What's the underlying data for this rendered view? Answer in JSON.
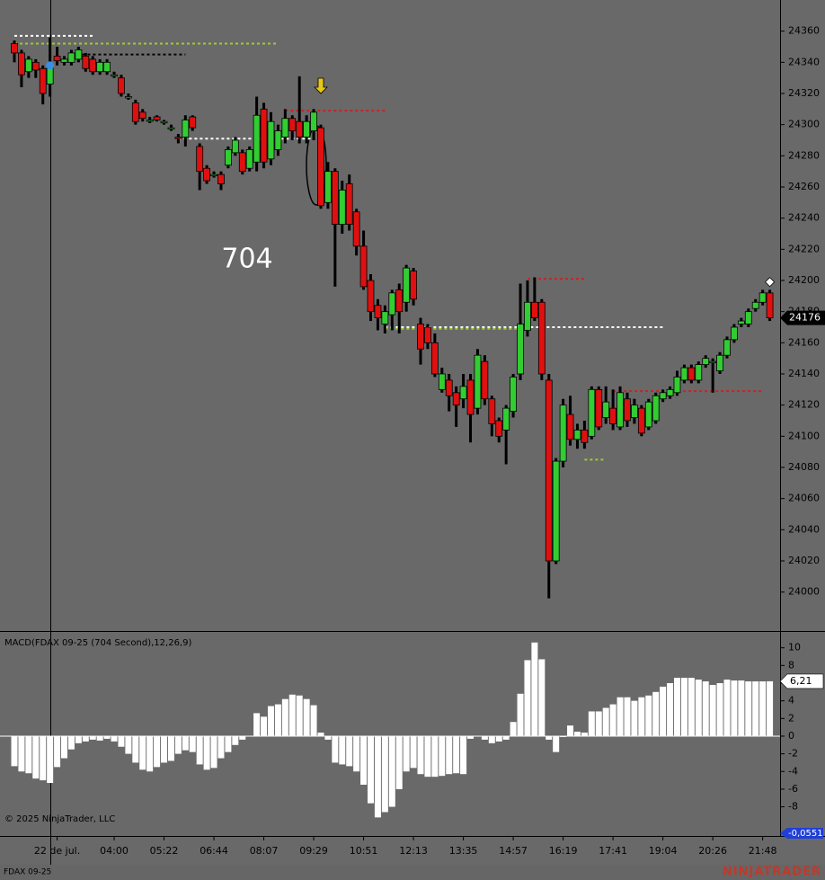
{
  "chart_data": [
    {
      "type": "candlestick",
      "annotation": "704",
      "categories": [
        null,
        null,
        null,
        null,
        null,
        null,
        "22 de jul.",
        null,
        null,
        null,
        null,
        null,
        null,
        null,
        "04:00",
        null,
        null,
        null,
        null,
        null,
        null,
        "05:22",
        null,
        null,
        null,
        null,
        null,
        null,
        "06:44",
        null,
        null,
        null,
        null,
        null,
        null,
        "08:07",
        null,
        null,
        null,
        null,
        null,
        null,
        "09:29",
        null,
        null,
        null,
        null,
        null,
        null,
        "10:51",
        null,
        null,
        null,
        null,
        null,
        null,
        "12:13",
        null,
        null,
        null,
        null,
        null,
        null,
        "13:35",
        null,
        null,
        null,
        null,
        null,
        null,
        "14:57",
        null,
        null,
        null,
        null,
        null,
        null,
        "16:19",
        null,
        null,
        null,
        null,
        null,
        null,
        "17:41",
        null,
        null,
        null,
        null,
        null,
        null,
        "19:04",
        null,
        null,
        null,
        null,
        null,
        null,
        "20:26",
        null,
        null,
        null,
        null,
        null,
        null,
        "21:48",
        null
      ],
      "ohlc": [
        [
          24352,
          24354,
          24340,
          24346
        ],
        [
          24346,
          24348,
          24324,
          24332
        ],
        [
          24334,
          24344,
          24330,
          24342
        ],
        [
          24340,
          24342,
          24330,
          24335
        ],
        [
          24336,
          24338,
          24313,
          24320
        ],
        [
          24326,
          24356,
          24318,
          24338
        ],
        [
          24344,
          24350,
          24338,
          24341
        ],
        [
          24340,
          24344,
          24338,
          24342
        ],
        [
          24340,
          24348,
          24338,
          24346
        ],
        [
          24342,
          24350,
          24340,
          24348
        ],
        [
          24344,
          24346,
          24334,
          24336
        ],
        [
          24342,
          24344,
          24332,
          24334
        ],
        [
          24334,
          24342,
          24332,
          24340
        ],
        [
          24334,
          24342,
          24332,
          24340
        ],
        [
          24332,
          24334,
          24330,
          24332
        ],
        [
          24330,
          24332,
          24318,
          24320
        ],
        [
          24318,
          24320,
          24316,
          24318
        ],
        [
          24314,
          24316,
          24300,
          24302
        ],
        [
          24308,
          24310,
          24302,
          24304
        ],
        [
          24303,
          24305,
          24301,
          24303
        ],
        [
          24305,
          24306,
          24302,
          24303
        ],
        [
          24302,
          24303,
          24300,
          24302
        ],
        [
          24298,
          24300,
          24296,
          24298
        ],
        [
          24292,
          24294,
          24288,
          24291
        ],
        [
          24292,
          24306,
          24286,
          24303
        ],
        [
          24305,
          24306,
          24296,
          24298
        ],
        [
          24286,
          24288,
          24258,
          24270
        ],
        [
          24272,
          24274,
          24262,
          24264
        ],
        [
          24268,
          24270,
          24266,
          24268
        ],
        [
          24268,
          24270,
          24258,
          24262
        ],
        [
          24274,
          24286,
          24272,
          24284
        ],
        [
          24282,
          24292,
          24280,
          24290
        ],
        [
          24282,
          24284,
          24268,
          24270
        ],
        [
          24272,
          24286,
          24270,
          24284
        ],
        [
          24276,
          24318,
          24270,
          24306
        ],
        [
          24310,
          24314,
          24272,
          24276
        ],
        [
          24278,
          24308,
          24274,
          24302
        ],
        [
          24284,
          24300,
          24280,
          24296
        ],
        [
          24292,
          24310,
          24288,
          24304
        ],
        [
          24304,
          24306,
          24290,
          24296
        ],
        [
          24302,
          24331,
          24288,
          24292
        ],
        [
          24292,
          24306,
          24288,
          24302
        ],
        [
          24296,
          24310,
          24290,
          24308
        ],
        [
          24298,
          24300,
          24246,
          24248
        ],
        [
          24250,
          24276,
          24246,
          24270
        ],
        [
          24270,
          24272,
          24196,
          24236
        ],
        [
          24236,
          24264,
          24230,
          24258
        ],
        [
          24262,
          24268,
          24232,
          24236
        ],
        [
          24244,
          24246,
          24216,
          24222
        ],
        [
          24222,
          24232,
          24194,
          24196
        ],
        [
          24200,
          24204,
          24174,
          24180
        ],
        [
          24184,
          24188,
          24168,
          24176
        ],
        [
          24172,
          24184,
          24166,
          24180
        ],
        [
          24178,
          24194,
          24168,
          24192
        ],
        [
          24194,
          24198,
          24166,
          24180
        ],
        [
          24186,
          24210,
          24180,
          24208
        ],
        [
          24206,
          24208,
          24184,
          24188
        ],
        [
          24172,
          24176,
          24146,
          24156
        ],
        [
          24170,
          24172,
          24156,
          24160
        ],
        [
          24160,
          24166,
          24138,
          24140
        ],
        [
          24130,
          24144,
          24128,
          24140
        ],
        [
          24136,
          24140,
          24116,
          24126
        ],
        [
          24128,
          24132,
          24106,
          24120
        ],
        [
          24124,
          24140,
          24118,
          24132
        ],
        [
          24136,
          24140,
          24096,
          24114
        ],
        [
          24118,
          24156,
          24114,
          24152
        ],
        [
          24148,
          24152,
          24120,
          24124
        ],
        [
          24124,
          24126,
          24100,
          24108
        ],
        [
          24110,
          24112,
          24096,
          24100
        ],
        [
          24104,
          24120,
          24082,
          24118
        ],
        [
          24116,
          24140,
          24112,
          24138
        ],
        [
          24140,
          24198,
          24136,
          24172
        ],
        [
          24168,
          24200,
          24164,
          24186
        ],
        [
          24186,
          24202,
          24174,
          24176
        ],
        [
          24186,
          24188,
          24136,
          24140
        ],
        [
          24136,
          24140,
          23996,
          24020
        ],
        [
          24020,
          24086,
          24018,
          24084
        ],
        [
          24084,
          24124,
          24080,
          24120
        ],
        [
          24114,
          24126,
          24094,
          24098
        ],
        [
          24098,
          24108,
          24092,
          24104
        ],
        [
          24104,
          24110,
          24092,
          24096
        ],
        [
          24100,
          24132,
          24098,
          24130
        ],
        [
          24130,
          24132,
          24104,
          24106
        ],
        [
          24112,
          24132,
          24108,
          24122
        ],
        [
          24118,
          24130,
          24104,
          24108
        ],
        [
          24106,
          24132,
          24104,
          24128
        ],
        [
          24124,
          24128,
          24106,
          24110
        ],
        [
          24112,
          24124,
          24108,
          24120
        ],
        [
          24118,
          24120,
          24100,
          24102
        ],
        [
          24106,
          24124,
          24104,
          24122
        ],
        [
          24110,
          24128,
          24108,
          24126
        ],
        [
          24124,
          24130,
          24122,
          24128
        ],
        [
          24126,
          24132,
          24124,
          24130
        ],
        [
          24128,
          24142,
          24126,
          24138
        ],
        [
          24136,
          24146,
          24134,
          24144
        ],
        [
          24144,
          24146,
          24134,
          24136
        ],
        [
          24136,
          24148,
          24134,
          24146
        ],
        [
          24146,
          24152,
          24144,
          24150
        ],
        [
          24148,
          24150,
          24128,
          24148
        ],
        [
          24142,
          24154,
          24140,
          24152
        ],
        [
          24152,
          24164,
          24150,
          24162
        ],
        [
          24162,
          24172,
          24160,
          24170
        ],
        [
          24172,
          24176,
          24170,
          24174
        ],
        [
          24172,
          24182,
          24170,
          24180
        ],
        [
          24182,
          24188,
          24180,
          24186
        ],
        [
          24186,
          24194,
          24184,
          24192
        ],
        [
          24192,
          24194,
          24174,
          24176
        ]
      ],
      "up_color": "#32cd32",
      "down_color": "#e01010",
      "ylim": [
        23975,
        24380
      ],
      "yticks": [
        24000,
        24020,
        24040,
        24060,
        24080,
        24100,
        24120,
        24140,
        24160,
        24180,
        24200,
        24220,
        24240,
        24260,
        24280,
        24300,
        24320,
        24340,
        24360
      ],
      "last_price": 24176,
      "levels": [
        {
          "price": 24357,
          "from": 0,
          "to": 11,
          "color": "#ffffff"
        },
        {
          "price": 24352,
          "from": 0,
          "to": 37,
          "color": "#9acd32"
        },
        {
          "price": 24345,
          "from": 8,
          "to": 24,
          "color": "#000000"
        },
        {
          "price": 24309,
          "from": 38,
          "to": 52,
          "color": "#d02020"
        },
        {
          "price": 24291,
          "from": 23,
          "to": 42,
          "color": "#ffffff"
        },
        {
          "price": 24201,
          "from": 72,
          "to": 80,
          "color": "#d02020"
        },
        {
          "price": 24170,
          "from": 52,
          "to": 91,
          "color": "#ffffff"
        },
        {
          "price": 24169,
          "from": 52,
          "to": 71,
          "color": "#9acd32"
        },
        {
          "price": 24129,
          "from": 84,
          "to": 105,
          "color": "#d02020"
        },
        {
          "price": 24085,
          "from": 80,
          "to": 83,
          "color": "#9acd32"
        }
      ],
      "markers": [
        {
          "index": 5,
          "price": 24338,
          "color": "#3a8ee6",
          "shape": "dot"
        },
        {
          "index": 106,
          "price": 24199,
          "color": "#ffffff",
          "shape": "diamond"
        }
      ]
    },
    {
      "type": "bar",
      "title": "MACD(FDAX 09-25 (704 Second),12,26,9)",
      "color": "#ffffff",
      "values": [
        -3.4,
        -4,
        -4.2,
        -4.8,
        -5,
        -5.3,
        -3.5,
        -2.5,
        -1.5,
        -0.8,
        -0.6,
        -0.4,
        -0.5,
        -0.3,
        -0.6,
        -1.2,
        -2,
        -3,
        -3.8,
        -4,
        -3.5,
        -3,
        -2.8,
        -2,
        -1.6,
        -1.8,
        -3.2,
        -3.8,
        -3.6,
        -2.5,
        -1.8,
        -1,
        -0.4,
        0,
        2.6,
        2.2,
        3.4,
        3.6,
        4.2,
        4.7,
        4.6,
        4.2,
        3.5,
        0.4,
        -0.4,
        -3,
        -3.2,
        -3.4,
        -4,
        -5.5,
        -7.6,
        -9.2,
        -8.6,
        -8,
        -6,
        -4,
        -3.6,
        -4.3,
        -4.6,
        -4.6,
        -4.5,
        -4.3,
        -4.2,
        -4.3,
        -0.3,
        0,
        -0.4,
        -0.8,
        -0.6,
        -0.4,
        1.6,
        4.8,
        8.6,
        10.6,
        8.7,
        -0.4,
        -1.8,
        -0.1,
        1.2,
        0.5,
        0.4,
        2.8,
        2.8,
        3.2,
        3.6,
        4.4,
        4.4,
        4,
        4.4,
        4.6,
        5,
        5.6,
        6,
        6.6,
        6.6,
        6.6,
        6.4,
        6.2,
        5.8,
        6,
        6.4,
        6.3,
        6.3,
        6.2,
        6.2,
        6.2,
        6.21
      ],
      "ylim": [
        -11.3,
        11.8
      ],
      "yticks": [
        -8,
        -6,
        -4,
        -2,
        0,
        2,
        4,
        6,
        8,
        10
      ],
      "last_value": {
        "value": 6.21,
        "label": "6,21"
      },
      "signal_label": "-0,0551"
    }
  ],
  "watermark": "© 2025 NinjaTrader, LLC",
  "instrument": "FDAX 09-25",
  "brand": "NINJATRADER"
}
